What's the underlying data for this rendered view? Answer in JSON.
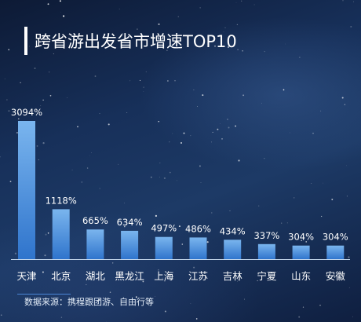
{
  "title": "跨省游出发省市增速TOP10",
  "source": "数据来源：携程跟团游、自由行等",
  "colors": {
    "bar_top": "#7ab5ee",
    "bar_bottom": "#2f74cc",
    "axis": "#c9dbef",
    "label": "#ffffff"
  },
  "chart_data": {
    "type": "bar",
    "categories": [
      "天津",
      "北京",
      "湖北",
      "黑龙江",
      "上海",
      "江苏",
      "吉林",
      "宁夏",
      "山东",
      "安徽"
    ],
    "values": [
      3094,
      1118,
      665,
      634,
      497,
      486,
      434,
      337,
      304,
      304
    ],
    "value_labels": [
      "3094%",
      "1118%",
      "665%",
      "634%",
      "497%",
      "486%",
      "434%",
      "337%",
      "304%",
      "304%"
    ],
    "unit": "%",
    "ylim": [
      0,
      3094
    ],
    "grid": false,
    "legend": "none"
  }
}
